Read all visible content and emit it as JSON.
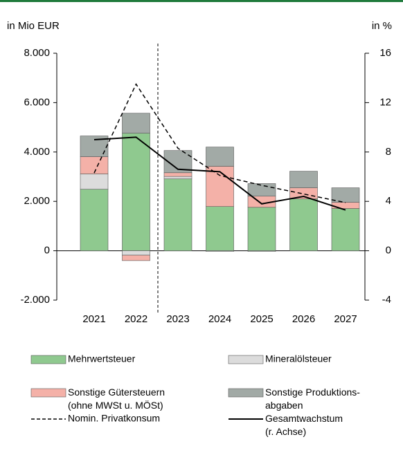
{
  "chart_data": {
    "type": "bar",
    "stacked": true,
    "y_label": "in Mio EUR",
    "y2_label": "in %",
    "categories": [
      "2021",
      "2022",
      "2023",
      "2024",
      "2025",
      "2026",
      "2027"
    ],
    "series": [
      {
        "name": "Mehrwertsteuer",
        "color": "#8fc98f",
        "values": [
          2490,
          4760,
          2910,
          1790,
          1760,
          2100,
          1710
        ]
      },
      {
        "name": "Mineralölsteuer",
        "color": "#dcdcdc",
        "values": [
          620,
          -180,
          100,
          -30,
          -30,
          0,
          0
        ]
      },
      {
        "name": "Sonstige Gütersteuern\n(ohne MWSt u. MÖSt)",
        "color": "#f4b1a8",
        "values": [
          700,
          -220,
          150,
          1630,
          450,
          450,
          250
        ]
      },
      {
        "name": "Sonstige Produktions-\nabgaben",
        "color": "#a2aaa6",
        "values": [
          840,
          810,
          900,
          780,
          510,
          670,
          590
        ]
      },
      {
        "name": "Nomin. Privatkonsum",
        "type": "line",
        "dashed": true,
        "color": "#000000",
        "axis": "y2",
        "values": [
          6.3,
          13.5,
          8.3,
          6.1,
          5.3,
          4.6,
          3.9
        ]
      },
      {
        "name": "Gesamtwachstum\n(r. Achse)",
        "type": "line",
        "color": "#000000",
        "axis": "y2",
        "values": [
          9.0,
          9.2,
          6.6,
          6.4,
          3.8,
          4.4,
          3.3
        ]
      }
    ],
    "ylim": [
      -2000,
      8000
    ],
    "yticks": [
      {
        "value": -2000,
        "label": "-2.000"
      },
      0,
      {
        "value": 2000,
        "label": "2.000"
      },
      {
        "value": 4000,
        "label": "4.000"
      },
      {
        "value": 6000,
        "label": "6.000"
      },
      {
        "value": 8000,
        "label": "8.000"
      }
    ],
    "y2lim": [
      -4,
      16
    ],
    "y2ticks": [
      -4,
      0,
      4,
      8,
      12,
      16
    ],
    "grid": false
  }
}
